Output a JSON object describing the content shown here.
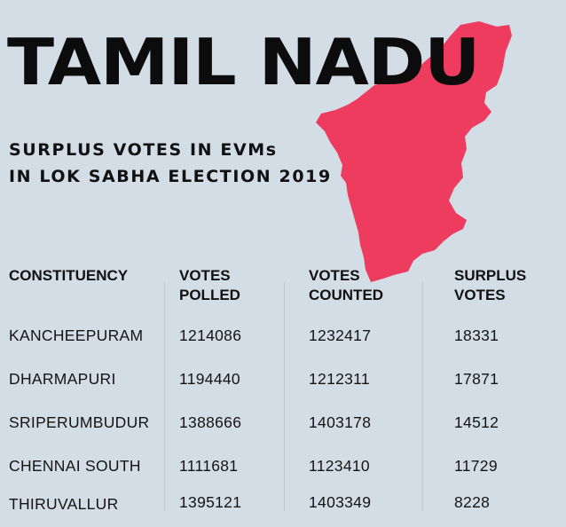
{
  "title": "TAMIL NADU",
  "subtitle": {
    "line1": "SURPLUS VOTES IN EVMs",
    "line2": "IN LOK SABHA ELECTION 2019"
  },
  "colors": {
    "background": "#d3dde6",
    "map_fill": "#ee3c5f",
    "text": "#111111"
  },
  "map_icon": "tamil-nadu-state-map",
  "table": {
    "headers": [
      {
        "line1": "CONSTITUENCY",
        "line2": ""
      },
      {
        "line1": "VOTES",
        "line2": "POLLED"
      },
      {
        "line1": "VOTES",
        "line2": "COUNTED"
      },
      {
        "line1": "SURPLUS",
        "line2": "VOTES"
      }
    ],
    "rows": [
      {
        "constituency": "KANCHEEPURAM",
        "votes_polled": "1214086",
        "votes_counted": "1232417",
        "surplus_votes": "18331"
      },
      {
        "constituency": "DHARMAPURI",
        "votes_polled": "1194440",
        "votes_counted": "1212311",
        "surplus_votes": "17871"
      },
      {
        "constituency": "SRIPERUMBUDUR",
        "votes_polled": "1388666",
        "votes_counted": "1403178",
        "surplus_votes": "14512"
      },
      {
        "constituency": "CHENNAI SOUTH",
        "votes_polled": "1111681",
        "votes_counted": "1123410",
        "surplus_votes": "11729"
      },
      {
        "constituency": "THIRUVALLUR",
        "votes_polled": "1395121",
        "votes_counted": "1403349",
        "surplus_votes": "8228"
      }
    ]
  }
}
